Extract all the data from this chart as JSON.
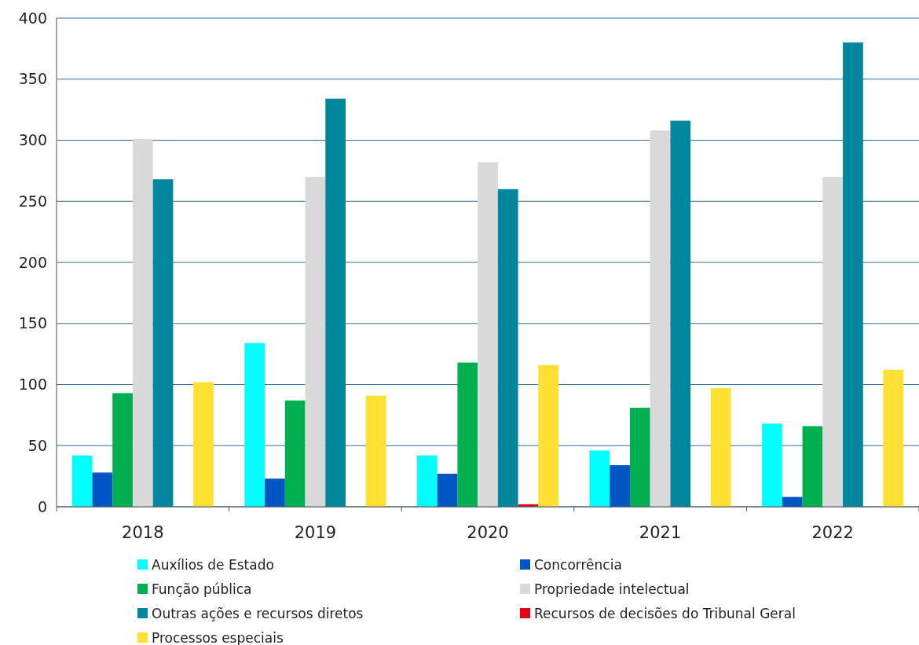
{
  "chart_data": {
    "type": "bar",
    "categories": [
      "2018",
      "2019",
      "2020",
      "2021",
      "2022"
    ],
    "series": [
      {
        "name": "Auxílios de Estado",
        "color": "#00ffff",
        "values": [
          42,
          134,
          42,
          46,
          68
        ]
      },
      {
        "name": "Concorrência",
        "color": "#0055c4",
        "values": [
          28,
          23,
          27,
          34,
          8
        ]
      },
      {
        "name": "Função pública",
        "color": "#00b050",
        "values": [
          93,
          87,
          118,
          81,
          66
        ]
      },
      {
        "name": "Propriedade intelectual",
        "color": "#d9d9d9",
        "values": [
          301,
          270,
          282,
          308,
          270
        ]
      },
      {
        "name": "Outras ações e recursos diretos",
        "color": "#00879e",
        "values": [
          268,
          334,
          260,
          316,
          380
        ]
      },
      {
        "name": "Recursos de decisões do Tribunal Geral",
        "color": "#e30613",
        "values": [
          0,
          0,
          2,
          0,
          0
        ]
      },
      {
        "name": "Processos especiais",
        "color": "#ffe033",
        "values": [
          102,
          91,
          116,
          97,
          112
        ]
      }
    ],
    "ylim": [
      0,
      400
    ],
    "yticks": [
      0,
      50,
      100,
      150,
      200,
      250,
      300,
      350,
      400
    ],
    "grid": "y",
    "legend": "bottom"
  }
}
